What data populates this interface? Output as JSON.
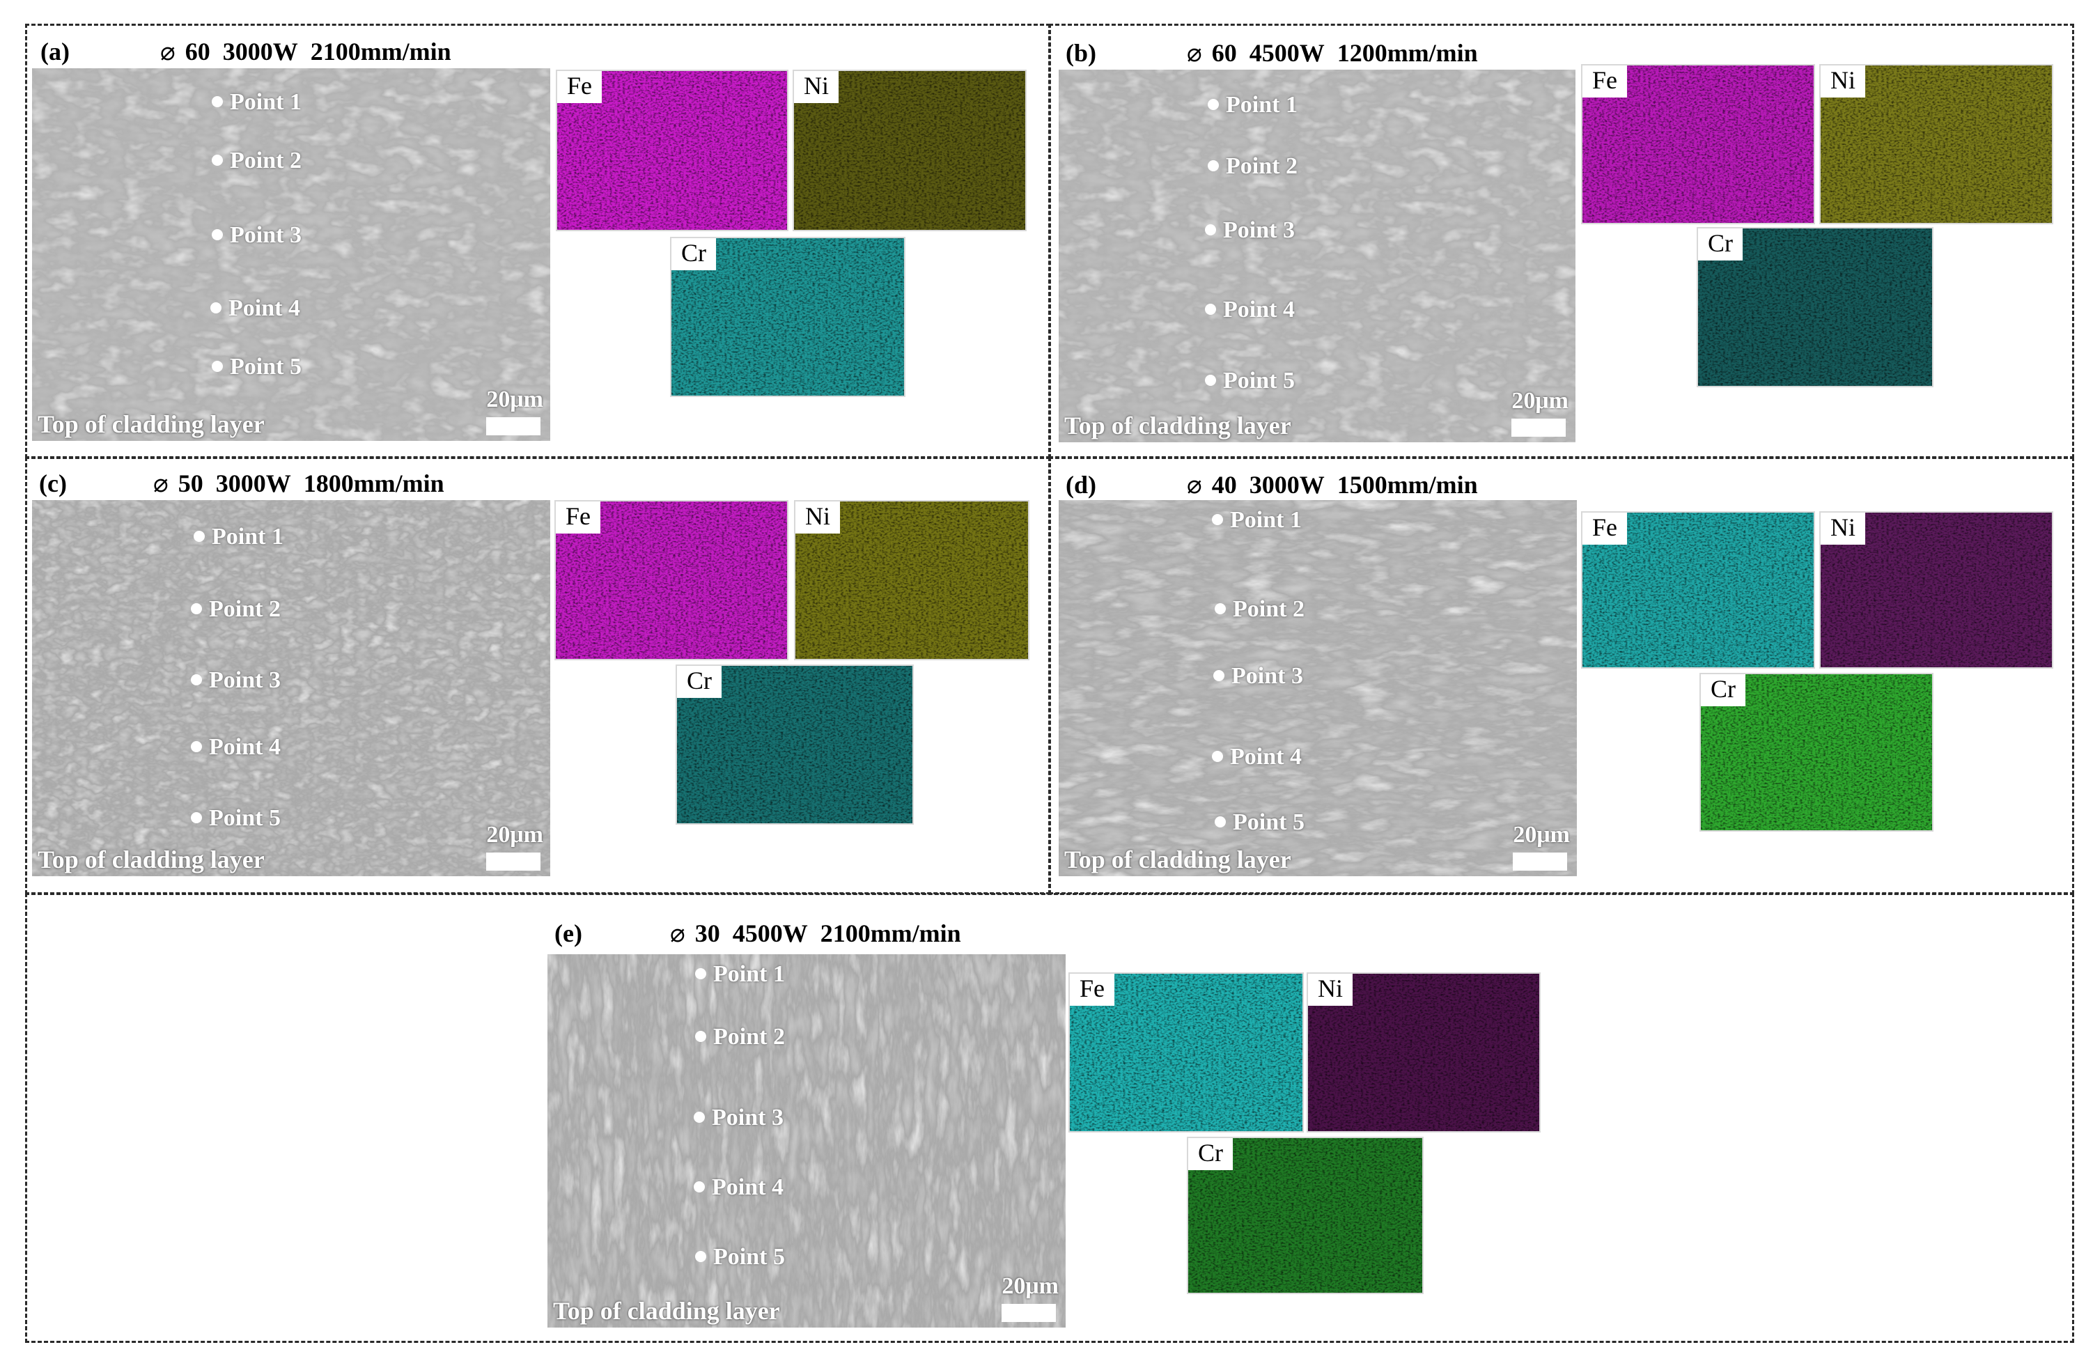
{
  "panels": [
    {
      "tag": "(a)",
      "diameter_symbol": "⌀",
      "diameter": "60",
      "power": "3000W",
      "speed": "2100mm/min",
      "points": [
        "Point 1",
        "Point 2",
        "Point 3",
        "Point 4",
        "Point 5"
      ],
      "caption": "Top of cladding layer",
      "scale": "20μm",
      "maps": [
        {
          "element": "Fe",
          "color": "#c81bc8"
        },
        {
          "element": "Ni",
          "color": "#5a5a12"
        },
        {
          "element": "Cr",
          "color": "#1e9696"
        }
      ]
    },
    {
      "tag": "(b)",
      "diameter_symbol": "⌀",
      "diameter": "60",
      "power": "4500W",
      "speed": "1200mm/min",
      "points": [
        "Point 1",
        "Point 2",
        "Point 3",
        "Point 4",
        "Point 5"
      ],
      "caption": "Top of cladding layer",
      "scale": "20μm",
      "maps": [
        {
          "element": "Fe",
          "color": "#b81ab8"
        },
        {
          "element": "Ni",
          "color": "#7a7a1a"
        },
        {
          "element": "Cr",
          "color": "#165a5a"
        }
      ]
    },
    {
      "tag": "(c)",
      "diameter_symbol": "⌀",
      "diameter": "50",
      "power": "3000W",
      "speed": "1800mm/min",
      "points": [
        "Point 1",
        "Point 2",
        "Point 3",
        "Point 4",
        "Point 5"
      ],
      "caption": "Top of cladding layer",
      "scale": "20μm",
      "maps": [
        {
          "element": "Fe",
          "color": "#c21cc2"
        },
        {
          "element": "Ni",
          "color": "#747414"
        },
        {
          "element": "Cr",
          "color": "#177070"
        }
      ]
    },
    {
      "tag": "(d)",
      "diameter_symbol": "⌀",
      "diameter": "40",
      "power": "3000W",
      "speed": "1500mm/min",
      "points": [
        "Point 1",
        "Point 2",
        "Point 3",
        "Point 4",
        "Point 5"
      ],
      "caption": "Top of cladding layer",
      "scale": "20μm",
      "maps": [
        {
          "element": "Fe",
          "color": "#1fa6a6"
        },
        {
          "element": "Ni",
          "color": "#5a1a5a"
        },
        {
          "element": "Cr",
          "color": "#2ea82e"
        }
      ]
    },
    {
      "tag": "(e)",
      "diameter_symbol": "⌀",
      "diameter": "30",
      "power": "4500W",
      "speed": "2100mm/min",
      "points": [
        "Point 1",
        "Point 2",
        "Point 3",
        "Point 4",
        "Point 5"
      ],
      "caption": "Top of cladding layer",
      "scale": "20μm",
      "maps": [
        {
          "element": "Fe",
          "color": "#1fb0b0"
        },
        {
          "element": "Ni",
          "color": "#4a1248"
        },
        {
          "element": "Cr",
          "color": "#1f7a24"
        }
      ]
    }
  ]
}
